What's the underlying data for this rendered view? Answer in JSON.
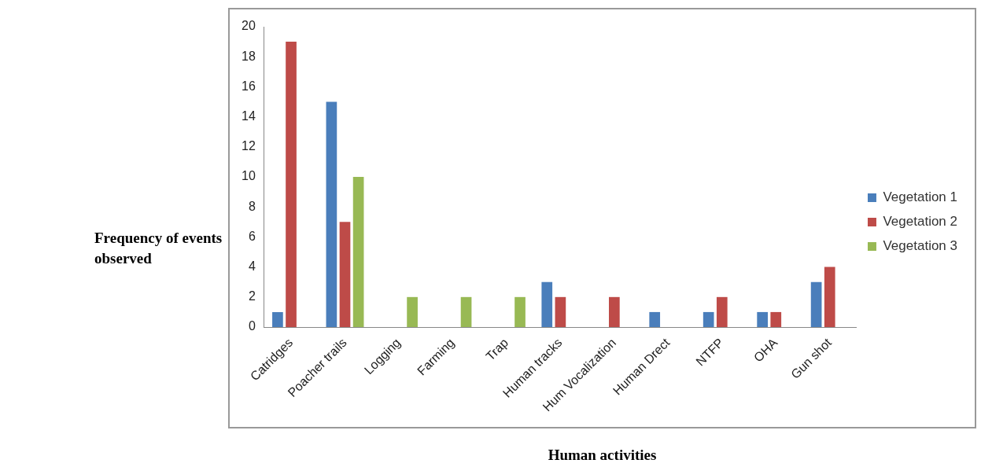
{
  "chart_data": {
    "type": "bar",
    "xlabel": "Human activities",
    "ylabel": "Frequency of events observed",
    "categories": [
      "Catridges",
      "Poacher trails",
      "Logging",
      "Farming",
      "Trap",
      "Human tracks",
      "Hum Vocalization",
      "Human Drect",
      "NTFP",
      "OHA",
      "Gun shot"
    ],
    "series": [
      {
        "name": "Vegetation 1",
        "color": "#4a7ebb",
        "values": [
          1,
          15,
          0,
          0,
          0,
          3,
          0,
          1,
          1,
          1,
          3
        ]
      },
      {
        "name": "Vegetation 2",
        "color": "#be4b48",
        "values": [
          19,
          7,
          0,
          0,
          0,
          2,
          2,
          0,
          2,
          1,
          4
        ]
      },
      {
        "name": "Vegetation 3",
        "color": "#98b954",
        "values": [
          0,
          10,
          2,
          2,
          2,
          0,
          0,
          0,
          0,
          0,
          0
        ]
      }
    ],
    "ylim": [
      0,
      20
    ],
    "yticks": [
      0,
      2,
      4,
      6,
      8,
      10,
      12,
      14,
      16,
      18,
      20
    ],
    "grid": false,
    "legend": "right"
  }
}
